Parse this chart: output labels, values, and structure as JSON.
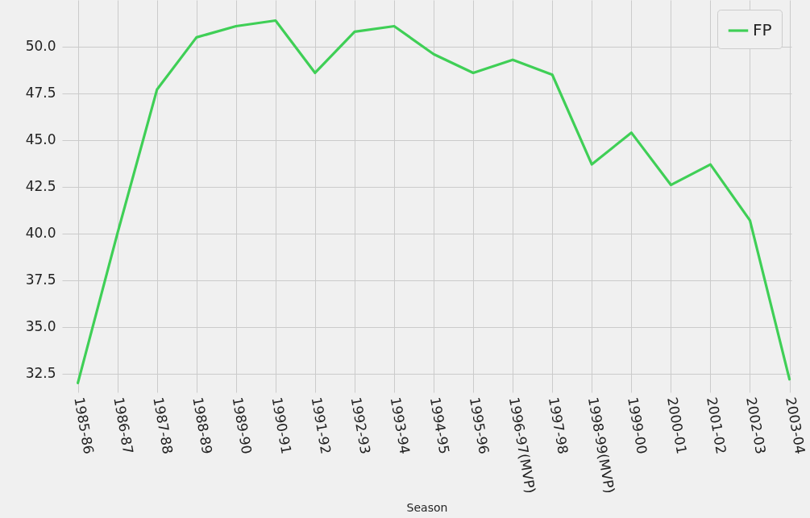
{
  "chart_data": {
    "type": "line",
    "xlabel": "Season",
    "categories": [
      "1985-86",
      "1986-87",
      "1987-88",
      "1988-89",
      "1989-90",
      "1990-91",
      "1991-92",
      "1992-93",
      "1993-94",
      "1994-95",
      "1995-96",
      "1996-97(MVP)",
      "1997-98",
      "1998-99(MVP)",
      "1999-00",
      "2000-01",
      "2001-02",
      "2002-03",
      "2003-04"
    ],
    "series": [
      {
        "name": "FP",
        "color": "#3fcf56",
        "values": [
          32.0,
          40.0,
          47.7,
          50.5,
          51.1,
          51.4,
          48.6,
          50.8,
          51.1,
          49.6,
          48.6,
          49.3,
          48.5,
          43.7,
          45.4,
          42.6,
          43.7,
          40.7,
          32.2
        ]
      }
    ],
    "ylim": [
      31.5,
      52.5
    ],
    "yticks": [
      {
        "value": 32.5,
        "label": "32.5"
      },
      {
        "value": 35,
        "label": "35.0"
      },
      {
        "value": 37.5,
        "label": "37.5"
      },
      {
        "value": 40,
        "label": "40.0"
      },
      {
        "value": 42.5,
        "label": "42.5"
      },
      {
        "value": 45,
        "label": "45.0"
      },
      {
        "value": 47.5,
        "label": "47.5"
      },
      {
        "value": 50,
        "label": "50.0"
      }
    ],
    "grid": true,
    "legend": "top right",
    "marker": "none",
    "line_style": "solid"
  }
}
